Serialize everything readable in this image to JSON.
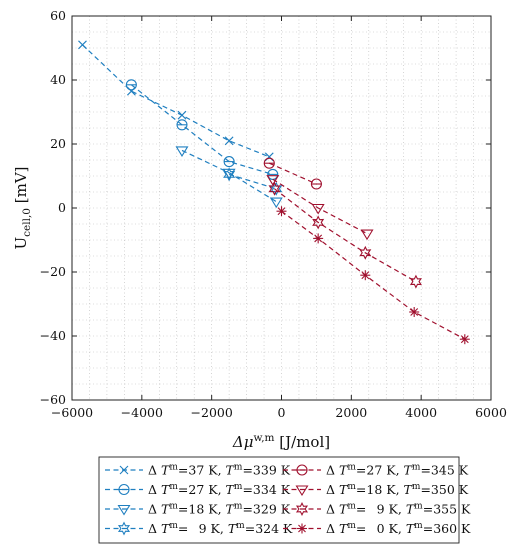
{
  "chart_data": {
    "type": "line",
    "title": "",
    "xlabel": "Δμ^{w,m} [J/mol]",
    "ylabel": "U_{cell,0} [mV]",
    "xlim": [
      -6000,
      6000
    ],
    "ylim": [
      -60,
      60
    ],
    "x_ticks": [
      -6000,
      -4000,
      -2000,
      0,
      2000,
      4000,
      6000
    ],
    "y_ticks": [
      -60,
      -40,
      -20,
      0,
      20,
      40,
      60
    ],
    "grid": "dotted major and minor",
    "legend_placement": "bottom-outside",
    "colors": {
      "blue": "#1f7fc0",
      "red": "#a0102e"
    },
    "series": [
      {
        "name": "ΔT^m=37 K,  T^m=339 K",
        "color": "blue",
        "marker": "x",
        "x": [
          -5700,
          -4300,
          -2850,
          -1500,
          -350
        ],
        "y": [
          51,
          36.5,
          29,
          21,
          16
        ]
      },
      {
        "name": "ΔT^m=27 K,  T^m=334 K",
        "color": "blue",
        "marker": "circle-bar",
        "x": [
          -4300,
          -2850,
          -1500,
          -250
        ],
        "y": [
          38.5,
          26,
          14.5,
          10.5
        ]
      },
      {
        "name": "ΔT^m=18 K,  T^m=329 K",
        "color": "blue",
        "marker": "triangle-down",
        "x": [
          -2850,
          -1500,
          -150
        ],
        "y": [
          18,
          11,
          2
        ]
      },
      {
        "name": "ΔT^m= 9 K,  T^m=324 K",
        "color": "blue",
        "marker": "hexagram",
        "x": [
          -1500,
          -150
        ],
        "y": [
          10.5,
          6
        ]
      },
      {
        "name": "ΔT^m=27 K,  T^m=345 K",
        "color": "red",
        "marker": "circle-bar",
        "x": [
          -350,
          1000
        ],
        "y": [
          14,
          7.5
        ]
      },
      {
        "name": "ΔT^m=18 K,  T^m=350 K",
        "color": "red",
        "marker": "triangle-down",
        "x": [
          -250,
          1050,
          2450
        ],
        "y": [
          9,
          0,
          -8
        ]
      },
      {
        "name": "ΔT^m= 9 K,  T^m=355 K",
        "color": "red",
        "marker": "hexagram",
        "x": [
          -200,
          1050,
          2400,
          3850
        ],
        "y": [
          6,
          -4.5,
          -14,
          -23
        ]
      },
      {
        "name": "ΔT^m= 0 K,  T^m=360 K",
        "color": "red",
        "marker": "asterisk",
        "x": [
          0,
          1050,
          2400,
          3800,
          5250
        ],
        "y": [
          -1,
          -9.5,
          -21,
          -32.5,
          -41
        ]
      }
    ],
    "legend_entries": [
      {
        "delta": "=37 K,",
        "tm": "=339 K"
      },
      {
        "delta": "=27 K,",
        "tm": "=345 K"
      },
      {
        "delta": "=27 K,",
        "tm": "=334 K"
      },
      {
        "delta": "=18 K,",
        "tm": "=350 K"
      },
      {
        "delta": "=18 K,",
        "tm": "=329 K"
      },
      {
        "delta": "=  9 K,",
        "tm": "=355 K"
      },
      {
        "delta": "=  9 K,",
        "tm": "=324 K"
      },
      {
        "delta": "=  0 K,",
        "tm": "=360 K"
      }
    ]
  }
}
